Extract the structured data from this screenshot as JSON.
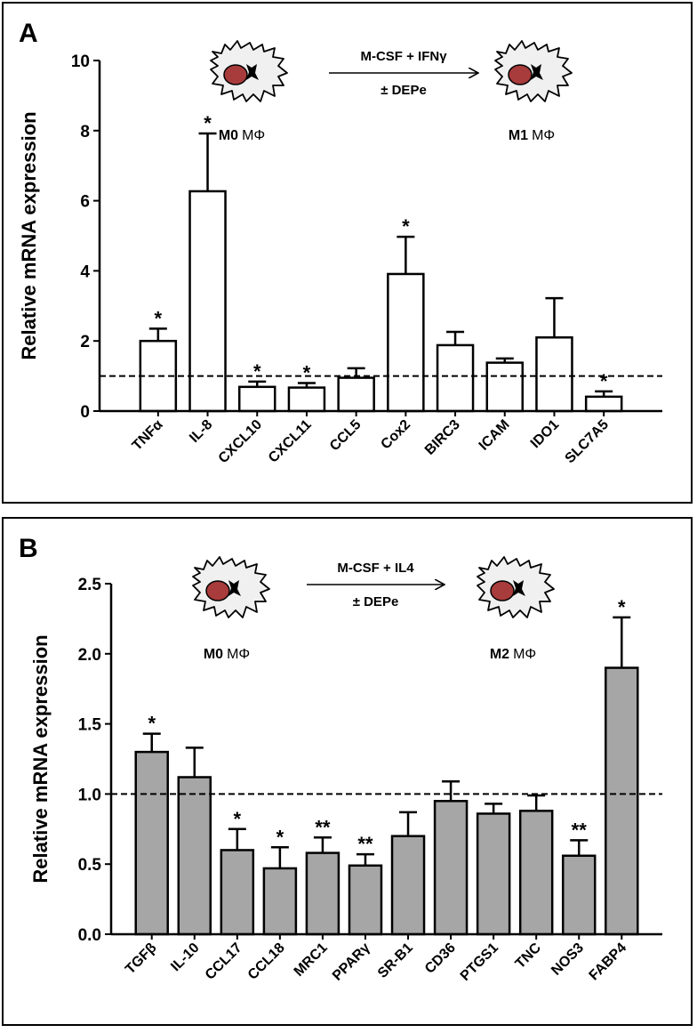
{
  "chart_data": [
    {
      "type": "bar",
      "panel_label": "A",
      "ylabel": "Relative mRNA expression",
      "categories": [
        "TNFα",
        "IL-8",
        "CXCL10",
        "CXCL11",
        "CCL5",
        "Cox2",
        "BIRC3",
        "ICAM",
        "IDO1",
        "SLC7A5"
      ],
      "values": [
        2.0,
        6.27,
        0.69,
        0.67,
        0.95,
        3.91,
        1.88,
        1.38,
        2.1,
        0.41
      ],
      "errors": [
        0.35,
        1.65,
        0.15,
        0.13,
        0.27,
        1.06,
        0.38,
        0.12,
        1.12,
        0.15
      ],
      "significance": [
        "*",
        "*",
        "*",
        "*",
        null,
        "*",
        null,
        null,
        null,
        "*"
      ],
      "color": "#ffffff",
      "ylim": [
        0,
        10
      ],
      "yticks": [
        0,
        2,
        4,
        6,
        8,
        10
      ],
      "reference_line": 1,
      "diagram": {
        "treatment": "M-CSF + IFNγ",
        "cotreatment": "± DEPe",
        "from_bold": "M0",
        "from_rest": "MΦ",
        "to_bold": "M1",
        "to_rest": "MΦ"
      }
    },
    {
      "type": "bar",
      "panel_label": "B",
      "ylabel": "Relative mRNA expression",
      "categories": [
        "TGFβ",
        "IL-10",
        "CCL17",
        "CCL18",
        "MRC1",
        "PPARγ",
        "SR-B1",
        "CD36",
        "PTGS1",
        "TNC",
        "NOS3",
        "FABP4"
      ],
      "values": [
        1.3,
        1.12,
        0.6,
        0.47,
        0.58,
        0.49,
        0.7,
        0.95,
        0.86,
        0.88,
        0.56,
        1.9
      ],
      "errors": [
        0.13,
        0.21,
        0.15,
        0.15,
        0.11,
        0.08,
        0.17,
        0.14,
        0.07,
        0.11,
        0.11,
        0.36
      ],
      "significance": [
        "*",
        null,
        "*",
        "*",
        "**",
        "**",
        null,
        null,
        null,
        null,
        "**",
        "*"
      ],
      "color": "#a6a6a6",
      "ylim": [
        0,
        2.5
      ],
      "yticks": [
        {
          "value": 0,
          "label": "0.0"
        },
        {
          "value": 0.5,
          "label": "0.5"
        },
        {
          "value": 1,
          "label": "1.0"
        },
        {
          "value": 1.5,
          "label": "1.5"
        },
        {
          "value": 2,
          "label": "2.0"
        },
        {
          "value": 2.5,
          "label": "2.5"
        }
      ],
      "reference_line": 1,
      "diagram": {
        "treatment": "M-CSF + IL4",
        "cotreatment": "± DEPe",
        "from_bold": "M0",
        "from_rest": "MΦ",
        "to_bold": "M2",
        "to_rest": "MΦ"
      }
    }
  ]
}
